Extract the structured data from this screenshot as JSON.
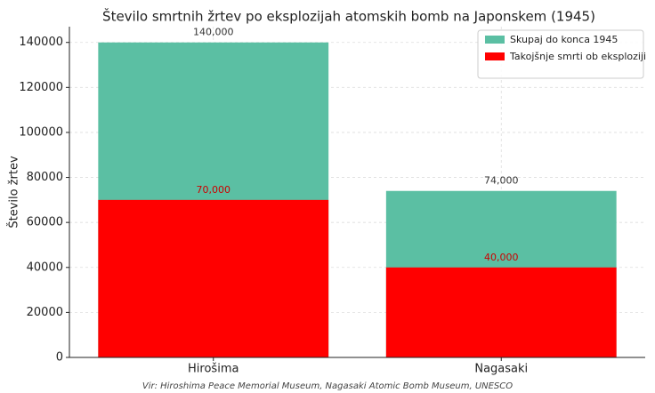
{
  "chart_data": {
    "type": "bar",
    "title": "Število smrtnih žrtev po eksplozijah atomskih bomb na Japonskem (1945)",
    "ylabel": "Število žrtev",
    "source": "Vir: Hiroshima Peace Memorial Museum, Nagasaki Atomic Bomb Museum, UNESCO",
    "categories": [
      "Hirošima",
      "Nagasaki"
    ],
    "series": [
      {
        "name": "Skupaj do konca 1945",
        "color": "#5bbfa3",
        "values": [
          140000,
          74000
        ],
        "value_labels": [
          "140,000",
          "74,000"
        ],
        "label_color": "#333333"
      },
      {
        "name": "Takojšnje smrti ob eksploziji",
        "color": "#ff0000",
        "values": [
          70000,
          40000
        ],
        "value_labels": [
          "70,000",
          "40,000"
        ],
        "label_color": "#cc0000"
      }
    ],
    "overlap": true,
    "ylim": [
      0,
      147000
    ],
    "yticks": [
      0,
      20000,
      40000,
      60000,
      80000,
      100000,
      120000,
      140000
    ],
    "grid": true,
    "legend": "upper right"
  }
}
